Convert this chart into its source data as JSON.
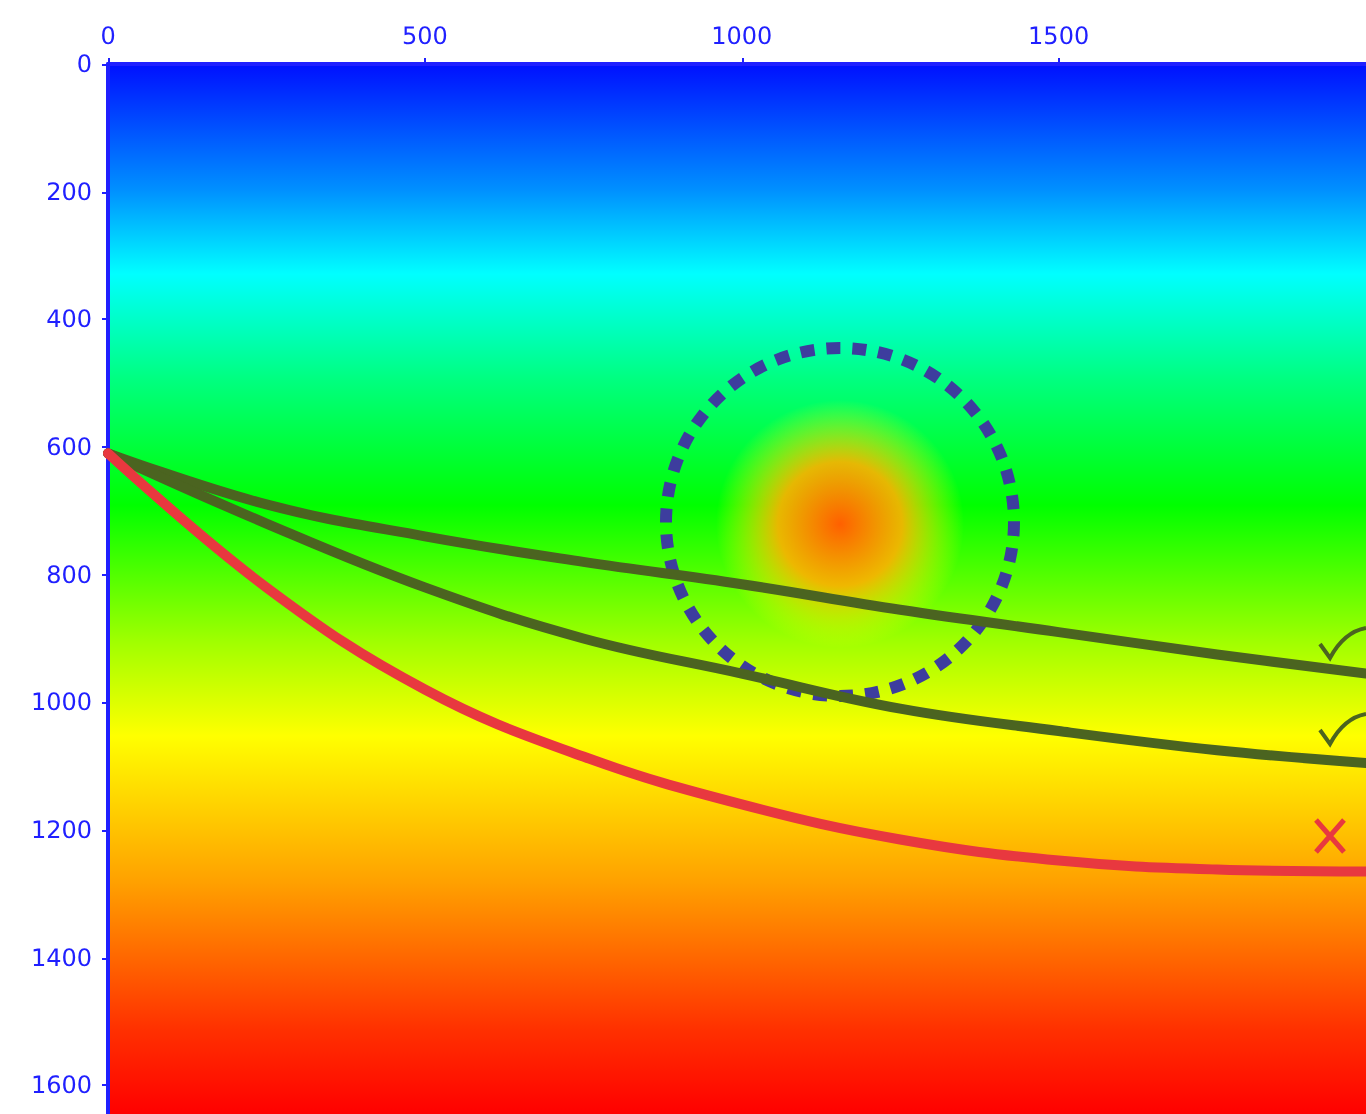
{
  "chart_data": {
    "type": "line",
    "x": [
      0,
      250,
      500,
      750,
      1000,
      1250,
      1500,
      1750,
      1985
    ],
    "series": [
      {
        "color": "#4b6420",
        "values": [
          610,
          690,
          740,
          780,
          815,
          855,
          890,
          925,
          955
        ]
      },
      {
        "color": "#4b6420",
        "values": [
          610,
          720,
          820,
          900,
          955,
          1010,
          1045,
          1075,
          1095
        ]
      },
      {
        "color": "#e8383f",
        "values": [
          610,
          820,
          980,
          1085,
          1160,
          1215,
          1248,
          1262,
          1265
        ]
      }
    ],
    "xlim": [
      0,
      1985
    ],
    "xticks": [
      0,
      500,
      1000,
      1500
    ],
    "ylim": [
      1645,
      0
    ],
    "yticks": [
      0,
      200,
      400,
      600,
      800,
      1000,
      1200,
      1400,
      1600
    ],
    "grid": false,
    "marker": "none",
    "line_style": "solid"
  }
}
